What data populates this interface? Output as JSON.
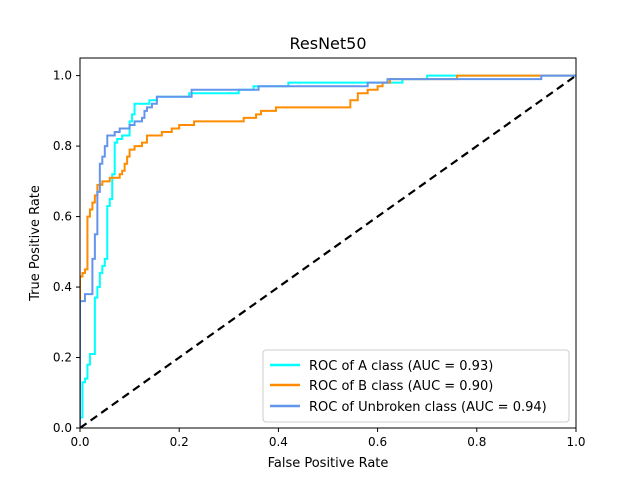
{
  "chart_data": {
    "type": "line",
    "title": "ResNet50",
    "xlabel": "False Positive Rate",
    "ylabel": "True Positive Rate",
    "xlim": [
      0.0,
      1.0
    ],
    "ylim": [
      0.0,
      1.05
    ],
    "xticks": [
      0.0,
      0.2,
      0.4,
      0.6,
      0.8,
      1.0
    ],
    "yticks": [
      0.0,
      0.2,
      0.4,
      0.6,
      0.8,
      1.0
    ],
    "xtick_labels": [
      "0.0",
      "0.2",
      "0.4",
      "0.6",
      "0.8",
      "1.0"
    ],
    "ytick_labels": [
      "0.0",
      "0.2",
      "0.4",
      "0.6",
      "0.8",
      "1.0"
    ],
    "grid": false,
    "legend_position": "lower right",
    "series": [
      {
        "name": "ROC of A class (AUC = 0.93)",
        "color": "#00ffff",
        "style": "solid",
        "points": [
          [
            0.0,
            0.0
          ],
          [
            0.0,
            0.03
          ],
          [
            0.005,
            0.03
          ],
          [
            0.005,
            0.13
          ],
          [
            0.01,
            0.13
          ],
          [
            0.01,
            0.14
          ],
          [
            0.015,
            0.14
          ],
          [
            0.015,
            0.18
          ],
          [
            0.02,
            0.18
          ],
          [
            0.02,
            0.21
          ],
          [
            0.03,
            0.21
          ],
          [
            0.03,
            0.37
          ],
          [
            0.035,
            0.37
          ],
          [
            0.035,
            0.4
          ],
          [
            0.04,
            0.4
          ],
          [
            0.04,
            0.44
          ],
          [
            0.045,
            0.44
          ],
          [
            0.045,
            0.46
          ],
          [
            0.05,
            0.46
          ],
          [
            0.05,
            0.48
          ],
          [
            0.055,
            0.48
          ],
          [
            0.055,
            0.63
          ],
          [
            0.06,
            0.63
          ],
          [
            0.06,
            0.65
          ],
          [
            0.065,
            0.65
          ],
          [
            0.065,
            0.72
          ],
          [
            0.07,
            0.72
          ],
          [
            0.07,
            0.81
          ],
          [
            0.075,
            0.81
          ],
          [
            0.075,
            0.82
          ],
          [
            0.085,
            0.82
          ],
          [
            0.085,
            0.83
          ],
          [
            0.1,
            0.83
          ],
          [
            0.1,
            0.87
          ],
          [
            0.105,
            0.87
          ],
          [
            0.105,
            0.89
          ],
          [
            0.11,
            0.89
          ],
          [
            0.11,
            0.92
          ],
          [
            0.14,
            0.92
          ],
          [
            0.14,
            0.93
          ],
          [
            0.155,
            0.93
          ],
          [
            0.155,
            0.94
          ],
          [
            0.22,
            0.94
          ],
          [
            0.22,
            0.95
          ],
          [
            0.32,
            0.95
          ],
          [
            0.32,
            0.96
          ],
          [
            0.35,
            0.96
          ],
          [
            0.35,
            0.97
          ],
          [
            0.42,
            0.97
          ],
          [
            0.42,
            0.98
          ],
          [
            0.65,
            0.98
          ],
          [
            0.65,
            0.99
          ],
          [
            0.7,
            0.99
          ],
          [
            0.7,
            1.0
          ],
          [
            1.0,
            1.0
          ]
        ]
      },
      {
        "name": "ROC of B class (AUC = 0.90)",
        "color": "#ff8c00",
        "style": "solid",
        "points": [
          [
            0.0,
            0.0
          ],
          [
            0.0,
            0.43
          ],
          [
            0.005,
            0.43
          ],
          [
            0.005,
            0.44
          ],
          [
            0.01,
            0.44
          ],
          [
            0.01,
            0.45
          ],
          [
            0.015,
            0.45
          ],
          [
            0.015,
            0.6
          ],
          [
            0.02,
            0.6
          ],
          [
            0.02,
            0.62
          ],
          [
            0.025,
            0.62
          ],
          [
            0.025,
            0.64
          ],
          [
            0.03,
            0.64
          ],
          [
            0.03,
            0.66
          ],
          [
            0.035,
            0.66
          ],
          [
            0.035,
            0.69
          ],
          [
            0.045,
            0.69
          ],
          [
            0.045,
            0.7
          ],
          [
            0.06,
            0.7
          ],
          [
            0.06,
            0.71
          ],
          [
            0.08,
            0.71
          ],
          [
            0.08,
            0.72
          ],
          [
            0.085,
            0.72
          ],
          [
            0.085,
            0.73
          ],
          [
            0.09,
            0.73
          ],
          [
            0.09,
            0.75
          ],
          [
            0.095,
            0.75
          ],
          [
            0.095,
            0.77
          ],
          [
            0.1,
            0.77
          ],
          [
            0.1,
            0.79
          ],
          [
            0.11,
            0.79
          ],
          [
            0.11,
            0.8
          ],
          [
            0.125,
            0.8
          ],
          [
            0.125,
            0.81
          ],
          [
            0.135,
            0.81
          ],
          [
            0.135,
            0.83
          ],
          [
            0.165,
            0.83
          ],
          [
            0.165,
            0.84
          ],
          [
            0.185,
            0.84
          ],
          [
            0.185,
            0.85
          ],
          [
            0.2,
            0.85
          ],
          [
            0.2,
            0.86
          ],
          [
            0.23,
            0.86
          ],
          [
            0.23,
            0.87
          ],
          [
            0.33,
            0.87
          ],
          [
            0.33,
            0.88
          ],
          [
            0.355,
            0.88
          ],
          [
            0.355,
            0.89
          ],
          [
            0.365,
            0.89
          ],
          [
            0.365,
            0.9
          ],
          [
            0.395,
            0.9
          ],
          [
            0.395,
            0.91
          ],
          [
            0.545,
            0.91
          ],
          [
            0.545,
            0.93
          ],
          [
            0.56,
            0.93
          ],
          [
            0.56,
            0.95
          ],
          [
            0.58,
            0.95
          ],
          [
            0.58,
            0.96
          ],
          [
            0.6,
            0.96
          ],
          [
            0.6,
            0.97
          ],
          [
            0.61,
            0.97
          ],
          [
            0.61,
            0.98
          ],
          [
            0.625,
            0.98
          ],
          [
            0.625,
            0.99
          ],
          [
            0.76,
            0.99
          ],
          [
            0.76,
            1.0
          ],
          [
            0.92,
            1.0
          ],
          [
            0.92,
            1.0
          ],
          [
            1.0,
            1.0
          ]
        ]
      },
      {
        "name": "ROC of Unbroken class (AUC = 0.94)",
        "color": "#6495ed",
        "style": "solid",
        "points": [
          [
            0.0,
            0.0
          ],
          [
            0.0,
            0.36
          ],
          [
            0.01,
            0.36
          ],
          [
            0.01,
            0.38
          ],
          [
            0.025,
            0.38
          ],
          [
            0.025,
            0.48
          ],
          [
            0.03,
            0.48
          ],
          [
            0.03,
            0.55
          ],
          [
            0.035,
            0.55
          ],
          [
            0.035,
            0.67
          ],
          [
            0.04,
            0.67
          ],
          [
            0.04,
            0.75
          ],
          [
            0.045,
            0.75
          ],
          [
            0.045,
            0.77
          ],
          [
            0.05,
            0.77
          ],
          [
            0.05,
            0.8
          ],
          [
            0.055,
            0.8
          ],
          [
            0.055,
            0.83
          ],
          [
            0.07,
            0.83
          ],
          [
            0.07,
            0.84
          ],
          [
            0.08,
            0.84
          ],
          [
            0.08,
            0.85
          ],
          [
            0.1,
            0.85
          ],
          [
            0.1,
            0.86
          ],
          [
            0.11,
            0.86
          ],
          [
            0.11,
            0.87
          ],
          [
            0.125,
            0.87
          ],
          [
            0.125,
            0.88
          ],
          [
            0.13,
            0.88
          ],
          [
            0.13,
            0.9
          ],
          [
            0.135,
            0.9
          ],
          [
            0.135,
            0.91
          ],
          [
            0.145,
            0.91
          ],
          [
            0.145,
            0.92
          ],
          [
            0.155,
            0.92
          ],
          [
            0.155,
            0.94
          ],
          [
            0.225,
            0.94
          ],
          [
            0.225,
            0.96
          ],
          [
            0.36,
            0.96
          ],
          [
            0.36,
            0.97
          ],
          [
            0.58,
            0.97
          ],
          [
            0.58,
            0.98
          ],
          [
            0.62,
            0.98
          ],
          [
            0.62,
            0.99
          ],
          [
            0.93,
            0.99
          ],
          [
            0.93,
            1.0
          ],
          [
            1.0,
            1.0
          ]
        ]
      },
      {
        "name": "",
        "color": "#000000",
        "style": "dashed",
        "points": [
          [
            0.0,
            0.0
          ],
          [
            1.0,
            1.0
          ]
        ]
      }
    ]
  }
}
